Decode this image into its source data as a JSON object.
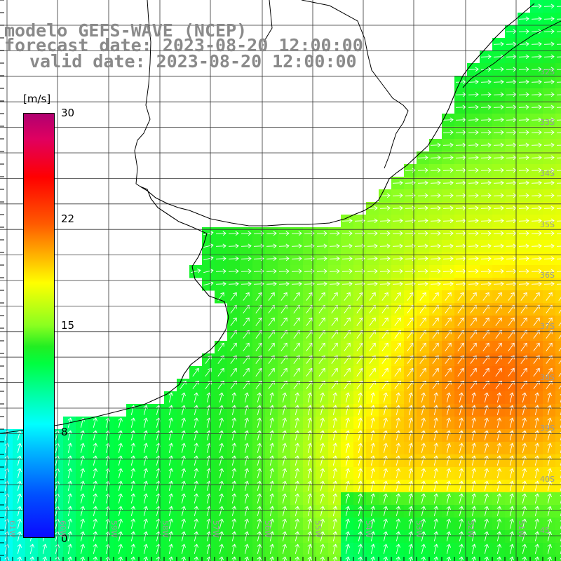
{
  "title": {
    "line1": "modelo GEFS-WAVE (NCEP)",
    "line2": "forecast date: 2023-08-20 12:00:00",
    "line3": "valid date: 2023-08-20 12:00:00"
  },
  "colorbar": {
    "unit": "[m/s]",
    "ticks": [
      "30",
      "22",
      "15",
      "8",
      "0"
    ],
    "range": [
      0,
      30
    ]
  },
  "grid": {
    "lon_labels": [
      "61W",
      "60W",
      "59W",
      "58W",
      "57W",
      "56W",
      "55W",
      "54W",
      "53W",
      "52W",
      "51W"
    ],
    "lat_labels": [
      "32S",
      "33S",
      "34S",
      "35S",
      "36S",
      "37S",
      "38S",
      "39S",
      "40S"
    ],
    "lon_extra": "45"
  },
  "colors": {
    "title": "#8a8a8a",
    "land": "#ffffff",
    "coast": "#000000",
    "grid": "#333333",
    "arrow": "#ffffff"
  }
}
